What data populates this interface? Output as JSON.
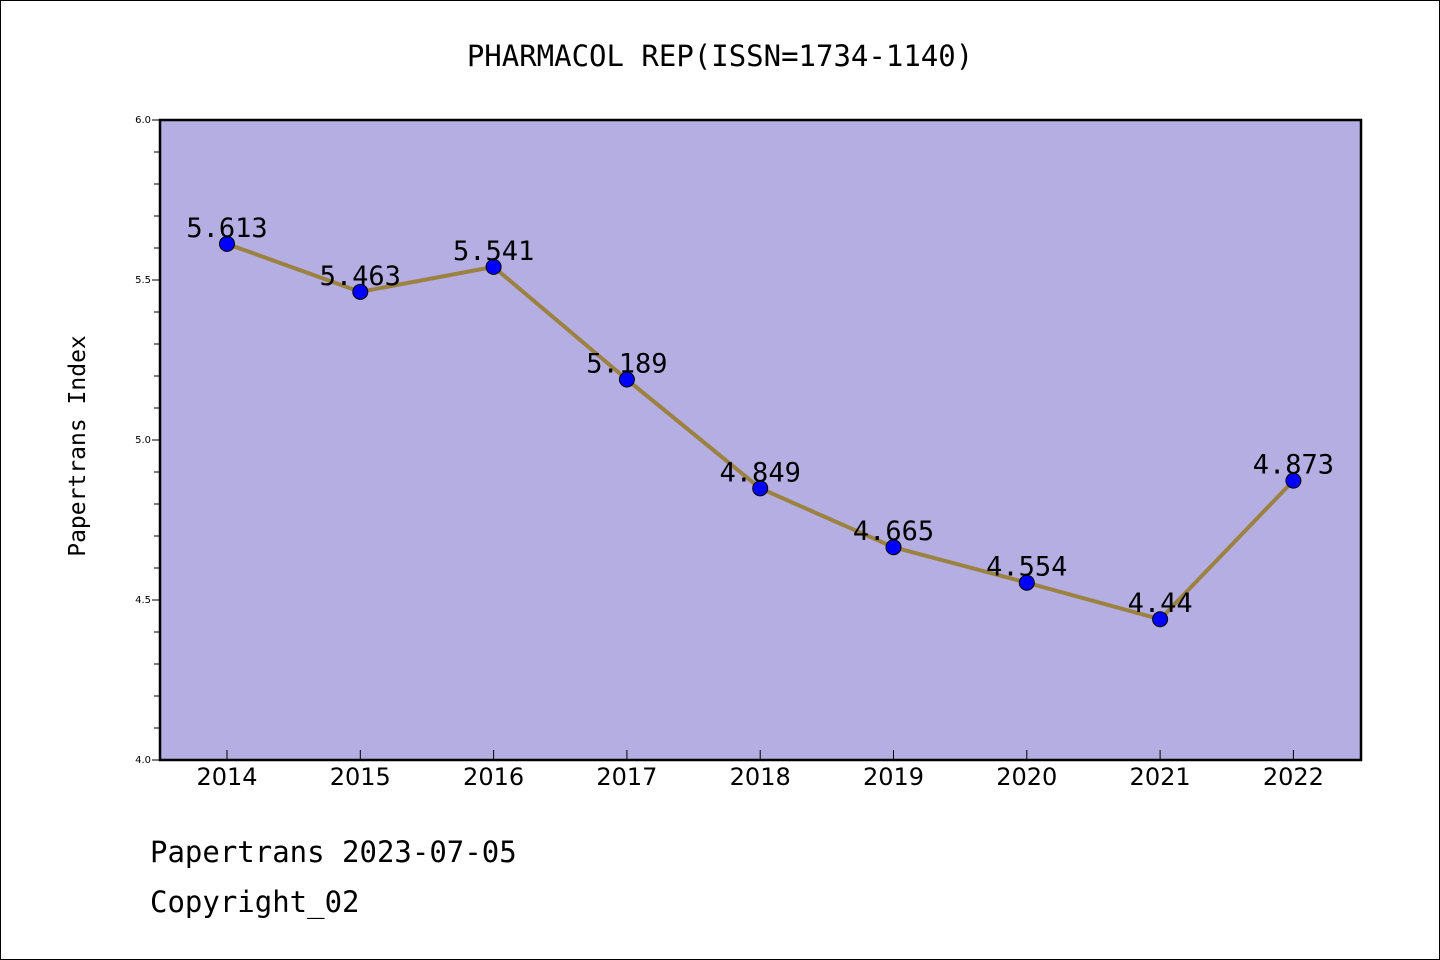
{
  "chart_data": {
    "type": "line",
    "title": "PHARMACOL REP(ISSN=1734-1140)",
    "xlabel": "",
    "ylabel": "Papertrans Index",
    "categories": [
      "2014",
      "2015",
      "2016",
      "2017",
      "2018",
      "2019",
      "2020",
      "2021",
      "2022"
    ],
    "series": [
      {
        "values": [
          5.613,
          5.463,
          5.541,
          5.189,
          4.849,
          4.665,
          4.554,
          4.44,
          4.873
        ],
        "data_labels": [
          "5.613",
          "5.463",
          "5.541",
          "5.189",
          "4.849",
          "4.665",
          "4.554",
          "4.44",
          "4.873"
        ]
      }
    ],
    "ylim": [
      4.0,
      6.0
    ],
    "yticks": [
      "4.0",
      "4.5",
      "5.0",
      "5.5",
      "6.0"
    ],
    "grid": false,
    "colors": {
      "plot_background": "#b5aee2",
      "line": "#9c8240",
      "marker": "#0000ff"
    }
  },
  "footer": {
    "line1": "Papertrans 2023-07-05",
    "line2": "Copyright_02"
  }
}
